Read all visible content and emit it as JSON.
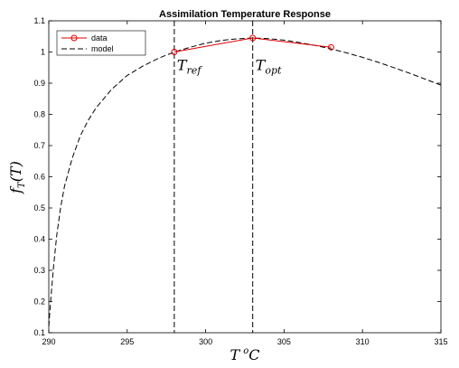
{
  "chart_data": {
    "type": "line",
    "title": "Assimilation Temperature Response",
    "xlabel": {
      "main": "T",
      "sup": "o",
      "rest": "C"
    },
    "ylabel": {
      "main": "f",
      "sub": "T",
      "rest": "(T)"
    },
    "xlim": [
      290,
      315
    ],
    "ylim": [
      0.1,
      1.1
    ],
    "xticks": [
      290,
      295,
      300,
      305,
      310,
      315
    ],
    "xtick_labels": [
      "290",
      "295",
      "300",
      "305",
      "310",
      "315"
    ],
    "yticks": [
      0.1,
      0.2,
      0.3,
      0.4,
      0.5,
      0.6,
      0.7,
      0.8,
      0.9,
      1.0,
      1.1
    ],
    "ytick_labels": [
      "0.1",
      "0.2",
      "0.3",
      "0.4",
      "0.5",
      "0.6",
      "0.7",
      "0.8",
      "0.9",
      "1",
      "1.1"
    ],
    "grid": false,
    "legend": "top-left",
    "series": [
      {
        "name": "data",
        "style": "solid-with-circle-markers",
        "color": "#e00000",
        "x": [
          298,
          303,
          308
        ],
        "y": [
          1.0,
          1.045,
          1.015
        ]
      },
      {
        "name": "model",
        "style": "dashed",
        "color": "#000000",
        "x": [
          290,
          290.1,
          290.3,
          290.5,
          290.75,
          291,
          291.5,
          292,
          292.5,
          293,
          294,
          295,
          296,
          297,
          298,
          299,
          300,
          301,
          302,
          303,
          304,
          305,
          306,
          307,
          308,
          309,
          310,
          311,
          312,
          313,
          314,
          315
        ],
        "y": [
          0.12,
          0.19,
          0.31,
          0.41,
          0.5,
          0.57,
          0.66,
          0.73,
          0.78,
          0.82,
          0.88,
          0.925,
          0.955,
          0.98,
          1.0,
          1.015,
          1.028,
          1.037,
          1.042,
          1.045,
          1.043,
          1.038,
          1.03,
          1.021,
          1.01,
          0.997,
          0.983,
          0.967,
          0.95,
          0.932,
          0.913,
          0.894
        ]
      }
    ],
    "vlines": [
      {
        "x": 298,
        "label_main": "T",
        "label_sub": "ref",
        "label_y": 0.96
      },
      {
        "x": 303,
        "label_main": "T",
        "label_sub": "opt",
        "label_y": 0.96
      }
    ]
  }
}
